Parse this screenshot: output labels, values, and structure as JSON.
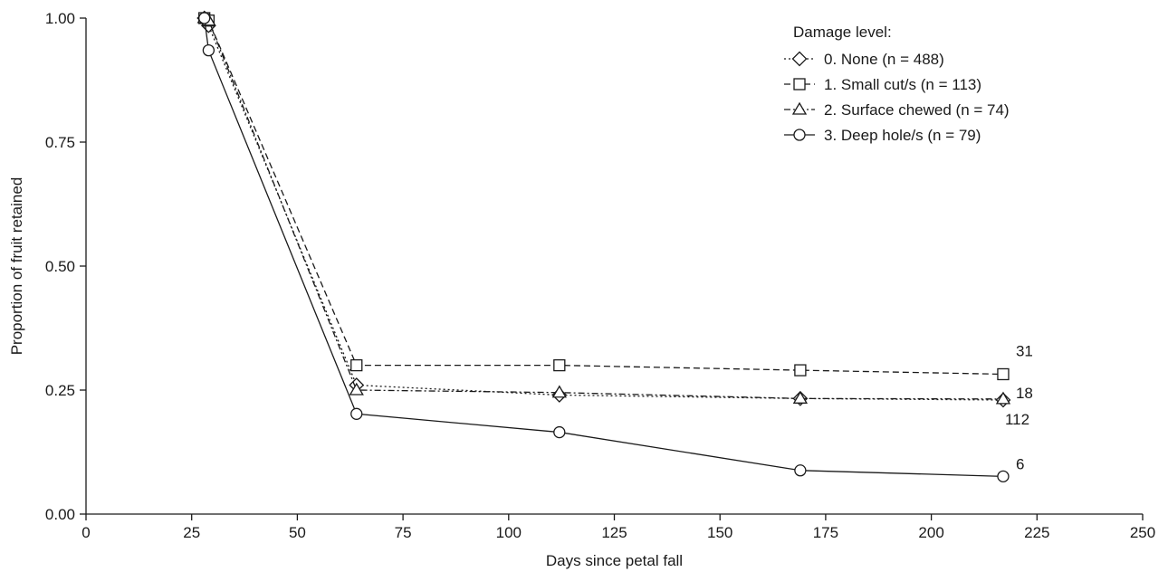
{
  "chart_data": {
    "type": "line",
    "xlabel": "Days since petal fall",
    "ylabel": "Proportion of fruit retained",
    "xlim": [
      0,
      250
    ],
    "ylim": [
      0,
      1
    ],
    "xticks": [
      0,
      25,
      50,
      75,
      100,
      125,
      150,
      175,
      200,
      225,
      250
    ],
    "yticks": [
      "0.00",
      "0.25",
      "0.50",
      "0.75",
      "1.00"
    ],
    "ytick_values": [
      0,
      0.25,
      0.5,
      0.75,
      1.0
    ],
    "grid": false,
    "legend": {
      "title": "Damage level:",
      "placement": "top-right"
    },
    "series": [
      {
        "name": "0. None (n = 488)",
        "marker": "diamond",
        "dash": "dotted",
        "x": [
          28,
          29,
          64,
          112,
          169,
          217
        ],
        "y": [
          1.0,
          0.985,
          0.26,
          0.24,
          0.233,
          0.23
        ]
      },
      {
        "name": "1. Small cut/s (n = 113)",
        "marker": "square",
        "dash": "dashed",
        "x": [
          28,
          29,
          64,
          112,
          169,
          217
        ],
        "y": [
          1.0,
          0.995,
          0.3,
          0.3,
          0.29,
          0.282
        ]
      },
      {
        "name": "2. Surface chewed (n = 74)",
        "marker": "triangle",
        "dash": "dashdot",
        "x": [
          28,
          29,
          64,
          112,
          169,
          217
        ],
        "y": [
          1.0,
          0.995,
          0.25,
          0.245,
          0.233,
          0.232
        ]
      },
      {
        "name": "3. Deep hole/s (n = 79)",
        "marker": "circle",
        "dash": "solid",
        "x": [
          28,
          29,
          64,
          112,
          169,
          217
        ],
        "y": [
          1.0,
          0.935,
          0.202,
          0.165,
          0.088,
          0.076
        ]
      }
    ],
    "annotations": [
      {
        "text": "31",
        "x": 217,
        "y": 0.282
      },
      {
        "text": "18",
        "x": 217,
        "y": 0.232
      },
      {
        "text": "112",
        "x": 217,
        "y": 0.23
      },
      {
        "text": "6",
        "x": 217,
        "y": 0.076
      }
    ]
  }
}
